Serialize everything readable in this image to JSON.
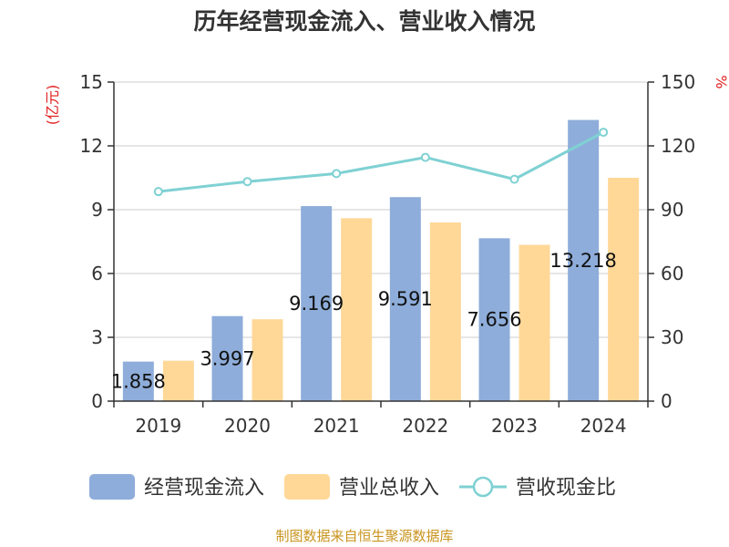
{
  "chart_data": {
    "type": "bar",
    "title": "历年经营现金流入、营业收入情况",
    "source": "制图数据来自恒生聚源数据库",
    "categories": [
      "2019",
      "2020",
      "2021",
      "2022",
      "2023",
      "2024"
    ],
    "left_axis": {
      "unit_label": "(亿元)",
      "ticks": [
        "0",
        "3",
        "6",
        "9",
        "12",
        "15"
      ],
      "ylim": [
        0,
        15
      ]
    },
    "right_axis": {
      "unit_label": "%",
      "ticks": [
        "0",
        "30",
        "60",
        "90",
        "120",
        "150"
      ],
      "ylim": [
        0,
        150
      ]
    },
    "grid": true,
    "legend_position": "bottom",
    "series": [
      {
        "name": "经营现金流入",
        "kind": "bar",
        "axis": "left",
        "color": "#8eadda",
        "values": [
          1.858,
          3.997,
          9.169,
          9.591,
          7.656,
          13.218
        ],
        "labels": [
          "1.858",
          "3.997",
          "9.169",
          "9.591",
          "7.656",
          "13.218"
        ]
      },
      {
        "name": "营业总收入",
        "kind": "bar",
        "axis": "left",
        "color": "#ffd898",
        "values": [
          1.9,
          3.85,
          8.6,
          8.4,
          7.35,
          10.5
        ]
      },
      {
        "name": "营收现金比",
        "kind": "line",
        "axis": "right",
        "color": "#7fd1d3",
        "values": [
          98.5,
          103.2,
          107,
          114.6,
          104.3,
          126.4
        ]
      }
    ]
  }
}
